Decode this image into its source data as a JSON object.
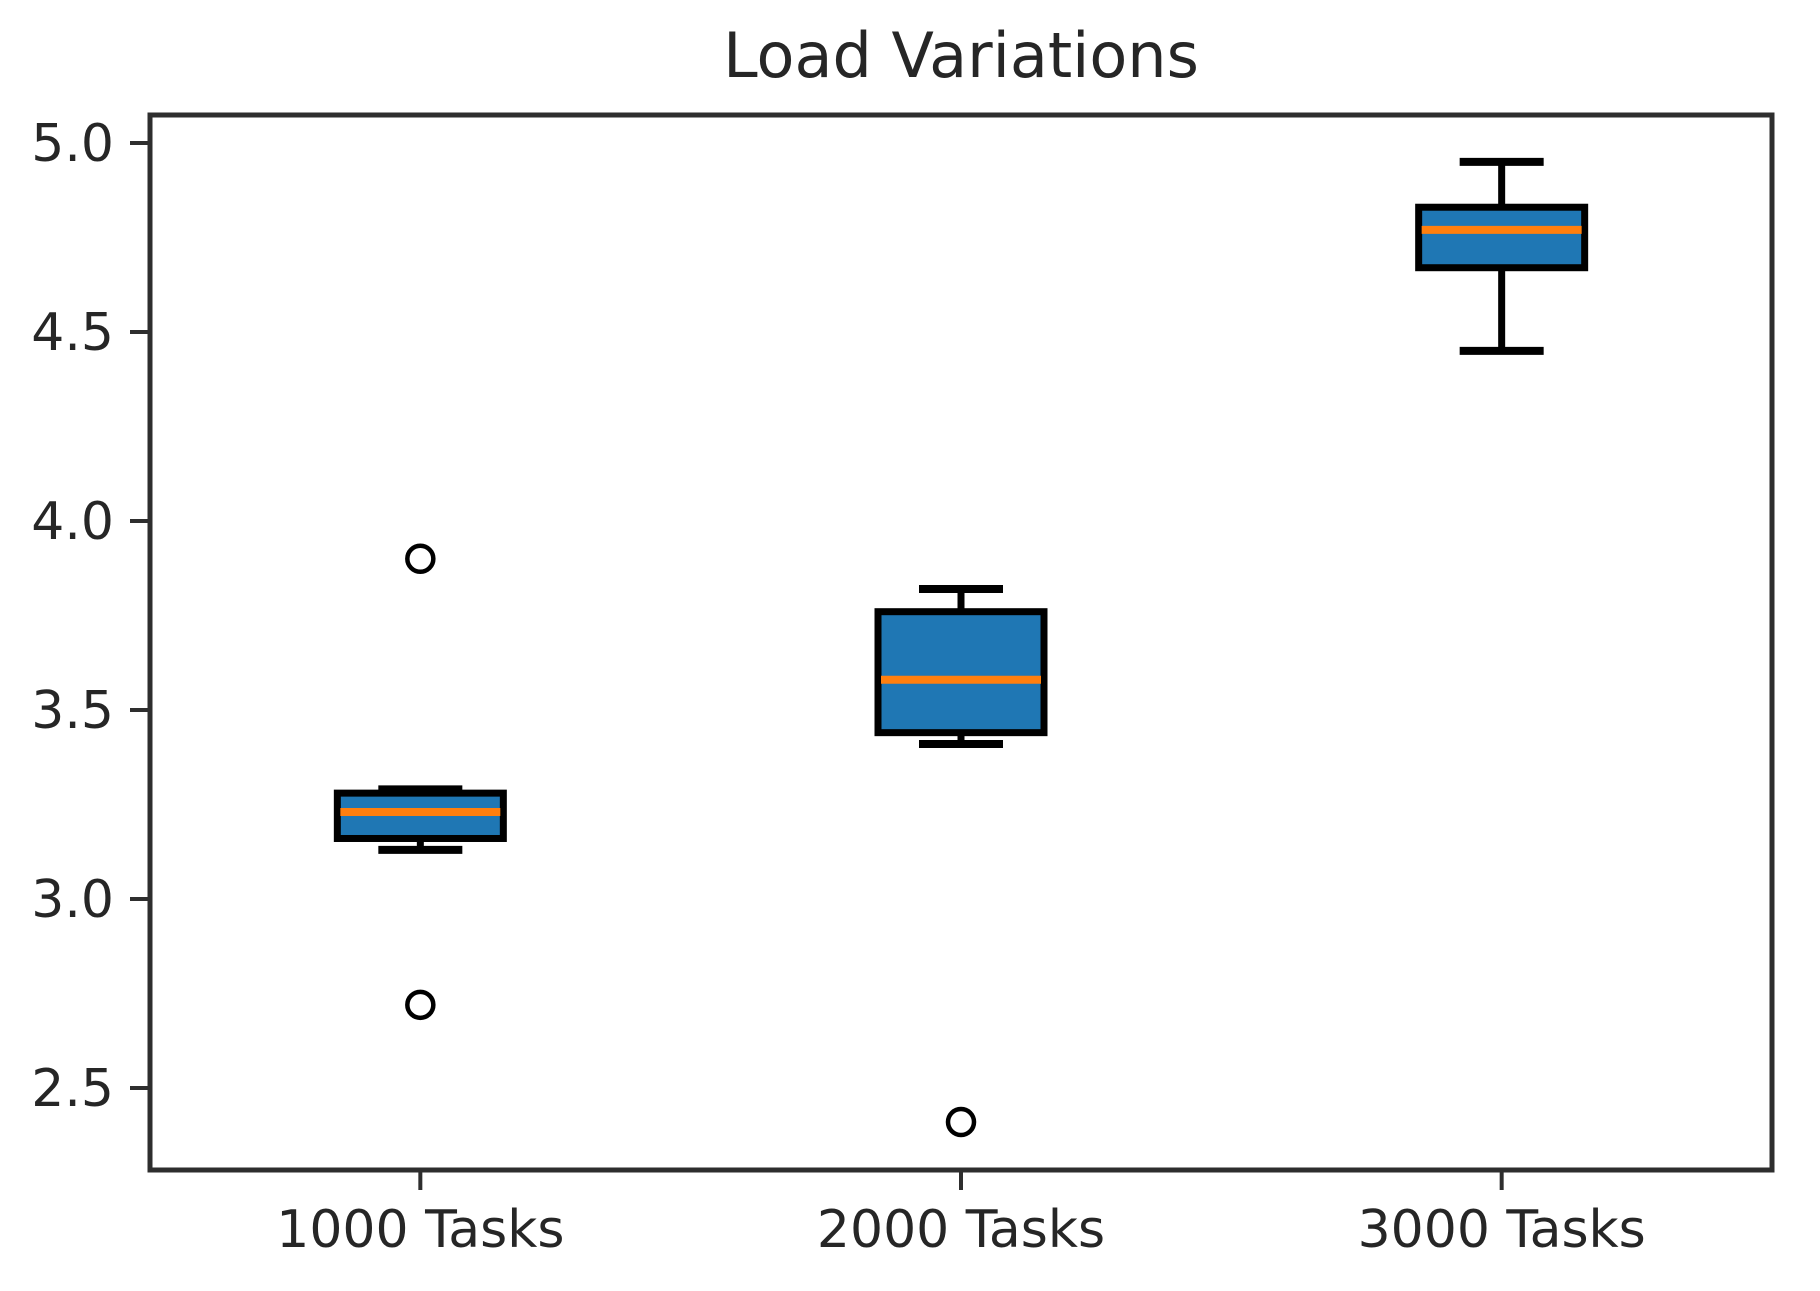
{
  "title": "Load Variations",
  "colors": {
    "box_fill": "#1f77b4",
    "median_line": "#ff7f0e",
    "box_line": "#000000",
    "axis_line": "#2e2e2e",
    "text": "#262626",
    "background": "#ffffff"
  },
  "chart_data": {
    "type": "boxplot",
    "title": "Load Variations",
    "categories": [
      "1000 Tasks",
      "2000 Tasks",
      "3000 Tasks"
    ],
    "series": [
      {
        "name": "1000 Tasks",
        "whisker_low": 3.13,
        "q1": 3.16,
        "median": 3.23,
        "q3": 3.28,
        "whisker_high": 3.29,
        "outliers": [
          3.9,
          2.72
        ]
      },
      {
        "name": "2000 Tasks",
        "whisker_low": 3.41,
        "q1": 3.44,
        "median": 3.58,
        "q3": 3.76,
        "whisker_high": 3.82,
        "outliers": [
          2.41
        ]
      },
      {
        "name": "3000 Tasks",
        "whisker_low": 4.45,
        "q1": 4.67,
        "median": 4.77,
        "q3": 4.83,
        "whisker_high": 4.95,
        "outliers": []
      }
    ],
    "yticks": [
      5.0,
      4.5,
      4.0,
      3.5,
      3.0,
      2.5
    ],
    "ytick_labels": [
      "5.0",
      "4.5",
      "4.0",
      "3.5",
      "3.0",
      "2.5"
    ],
    "xlabel": "",
    "ylabel": "",
    "ylim": [
      2.283,
      5.074
    ],
    "grid": false,
    "legend": "none"
  }
}
